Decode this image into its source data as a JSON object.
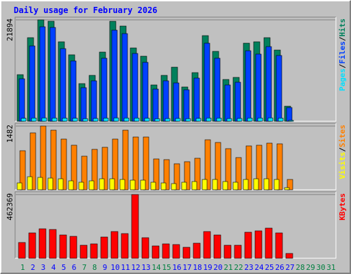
{
  "chart_data": [
    {
      "type": "bar",
      "title": "Daily usage for February 2026",
      "separator": "/",
      "ylim": [
        0,
        21894
      ],
      "yticks": [
        21894
      ],
      "series": [
        {
          "name": "Hits",
          "color": "#00805c",
          "values": [
            10060,
            18050,
            21894,
            21600,
            17160,
            14350,
            8130,
            9910,
            14940,
            21590,
            20560,
            15830,
            14050,
            7840,
            9910,
            11680,
            7400,
            10500,
            18490,
            15090,
            9020,
            9470,
            16860,
            17160,
            18050,
            15380,
            3250,
            0,
            0,
            0,
            0
          ]
        },
        {
          "name": "Files",
          "color": "#0040ff",
          "values": [
            9170,
            16270,
            20410,
            20260,
            15680,
            13020,
            7250,
            8730,
            13610,
            19670,
            18930,
            14640,
            12720,
            6950,
            8730,
            8280,
            6800,
            9320,
            16860,
            13610,
            7840,
            8430,
            15230,
            14500,
            16120,
            14200,
            2960,
            0,
            0,
            0,
            0
          ]
        },
        {
          "name": "Pages",
          "color": "#00e0ff",
          "values": [
            650,
            700,
            720,
            700,
            680,
            660,
            560,
            600,
            680,
            720,
            700,
            690,
            660,
            540,
            580,
            600,
            560,
            620,
            700,
            680,
            580,
            600,
            690,
            700,
            720,
            680,
            200,
            0,
            0,
            0,
            0
          ]
        }
      ]
    },
    {
      "type": "bar",
      "separator": "/",
      "ylim": [
        0,
        1482
      ],
      "yticks": [
        1482
      ],
      "series": [
        {
          "name": "Sites",
          "color": "#ff8000",
          "values": [
            908,
            1323,
            1482,
            1386,
            1179,
            1036,
            781,
            940,
            988,
            1179,
            1386,
            1227,
            1227,
            717,
            701,
            605,
            653,
            733,
            1163,
            1100,
            956,
            749,
            1020,
            1036,
            1084,
            1068,
            239,
            0,
            0,
            0,
            0
          ]
        },
        {
          "name": "Visits",
          "color": "#ffff00",
          "values": [
            159,
            303,
            287,
            271,
            255,
            207,
            175,
            207,
            255,
            255,
            239,
            223,
            223,
            175,
            159,
            143,
            175,
            191,
            239,
            239,
            191,
            175,
            239,
            255,
            255,
            239,
            48,
            0,
            0,
            0,
            0
          ]
        }
      ]
    },
    {
      "type": "bar",
      "ylim": [
        0,
        462369
      ],
      "yticks": [
        462369
      ],
      "categories": [
        "1",
        "2",
        "3",
        "4",
        "5",
        "6",
        "7",
        "8",
        "9",
        "10",
        "11",
        "12",
        "13",
        "14",
        "15",
        "16",
        "17",
        "18",
        "19",
        "20",
        "21",
        "22",
        "23",
        "24",
        "25",
        "26",
        "27",
        "28",
        "29",
        "30",
        "31"
      ],
      "category_colors": [
        "#008040",
        "#0000ff",
        "#0000ff",
        "#0000ff",
        "#0000ff",
        "#0000ff",
        "#008040",
        "#008040",
        "#0000ff",
        "#0000ff",
        "#0000ff",
        "#0000ff",
        "#0000ff",
        "#008040",
        "#008040",
        "#0000ff",
        "#0000ff",
        "#0000ff",
        "#0000ff",
        "#0000ff",
        "#008040",
        "#008040",
        "#0000ff",
        "#0000ff",
        "#0000ff",
        "#0000ff",
        "#0000ff",
        "#008040",
        "#008040",
        "#008040",
        "#008040"
      ],
      "series": [
        {
          "name": "KBytes",
          "color": "#ff0000",
          "values": [
            114350,
            183950,
            213780,
            208810,
            169030,
            159090,
            94460,
            104400,
            154120,
            193890,
            178970,
            462369,
            149150,
            89490,
            104400,
            99430,
            79540,
            109370,
            193890,
            169030,
            94460,
            94460,
            188920,
            198860,
            218750,
            183950,
            34800,
            0,
            0,
            0,
            0
          ]
        }
      ]
    }
  ]
}
